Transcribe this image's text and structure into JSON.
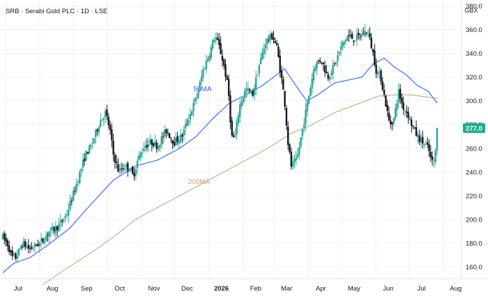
{
  "header": {
    "title": "SRB · Serabi Gold PLC · 1D · LSE",
    "currency": "GBX"
  },
  "colors": {
    "up": "#26a69a",
    "down": "#131722",
    "ma50": "#2962ff",
    "ma200": "#c8a97a",
    "price_badge": "#22ab94",
    "grid": "#eef0f3",
    "text": "#131722"
  },
  "chart_data": {
    "type": "candlestick",
    "title": "SRB · Serabi Gold PLC · 1D · LSE",
    "ylabel": "GBX",
    "ylim": [
      150,
      385
    ],
    "y_ticks": [
      "380.0",
      "360.0",
      "340.0",
      "320.0",
      "300.0",
      "280.0",
      "260.0",
      "240.0",
      "220.0",
      "200.0",
      "180.0",
      "160.0"
    ],
    "y_tick_values": [
      380,
      360,
      340,
      320,
      300,
      280,
      260,
      240,
      220,
      200,
      180,
      160
    ],
    "x_labels": [
      {
        "label": "Jul",
        "day": 5
      },
      {
        "label": "Aug",
        "day": 36
      },
      {
        "label": "Sep",
        "day": 67
      },
      {
        "label": "Oct",
        "day": 97
      },
      {
        "label": "Nov",
        "day": 128
      },
      {
        "label": "Dec",
        "day": 158
      },
      {
        "label": "2026",
        "day": 189
      },
      {
        "label": "Feb",
        "day": 220
      },
      {
        "label": "Mar",
        "day": 248
      },
      {
        "label": "Apr",
        "day": 279
      },
      {
        "label": "May",
        "day": 309
      },
      {
        "label": "Jun",
        "day": 340
      },
      {
        "label": "Jul",
        "day": 370
      },
      {
        "label": "Aug",
        "day": 401
      }
    ],
    "x_range_days": [
      0,
      410
    ],
    "last_price": "277.0",
    "last_price_value": 277,
    "price_anchors": [
      [
        0,
        185
      ],
      [
        5,
        178
      ],
      [
        8,
        168
      ],
      [
        12,
        168
      ],
      [
        18,
        180
      ],
      [
        24,
        175
      ],
      [
        30,
        178
      ],
      [
        36,
        182
      ],
      [
        42,
        190
      ],
      [
        47,
        192
      ],
      [
        52,
        196
      ],
      [
        58,
        205
      ],
      [
        64,
        222
      ],
      [
        70,
        240
      ],
      [
        75,
        255
      ],
      [
        80,
        262
      ],
      [
        88,
        283
      ],
      [
        93,
        290
      ],
      [
        97,
        275
      ],
      [
        100,
        255
      ],
      [
        105,
        240
      ],
      [
        110,
        245
      ],
      [
        115,
        243
      ],
      [
        118,
        236
      ],
      [
        122,
        250
      ],
      [
        128,
        262
      ],
      [
        135,
        265
      ],
      [
        140,
        262
      ],
      [
        148,
        275
      ],
      [
        155,
        265
      ],
      [
        162,
        270
      ],
      [
        170,
        290
      ],
      [
        176,
        305
      ],
      [
        181,
        325
      ],
      [
        187,
        340
      ],
      [
        192,
        355
      ],
      [
        196,
        345
      ],
      [
        200,
        330
      ],
      [
        204,
        310
      ],
      [
        207,
        270
      ],
      [
        210,
        268
      ],
      [
        214,
        295
      ],
      [
        220,
        310
      ],
      [
        226,
        305
      ],
      [
        232,
        330
      ],
      [
        238,
        350
      ],
      [
        244,
        355
      ],
      [
        248,
        345
      ],
      [
        252,
        320
      ],
      [
        255,
        300
      ],
      [
        258,
        265
      ],
      [
        261,
        245
      ],
      [
        266,
        250
      ],
      [
        270,
        270
      ],
      [
        276,
        300
      ],
      [
        282,
        330
      ],
      [
        288,
        335
      ],
      [
        294,
        320
      ],
      [
        300,
        330
      ],
      [
        306,
        345
      ],
      [
        312,
        355
      ],
      [
        318,
        352
      ],
      [
        324,
        355
      ],
      [
        330,
        360
      ],
      [
        335,
        340
      ],
      [
        338,
        325
      ],
      [
        342,
        320
      ],
      [
        346,
        300
      ],
      [
        350,
        280
      ],
      [
        354,
        285
      ],
      [
        358,
        308
      ],
      [
        362,
        295
      ],
      [
        366,
        290
      ],
      [
        370,
        280
      ],
      [
        375,
        270
      ],
      [
        380,
        265
      ],
      [
        385,
        260
      ],
      [
        388,
        248
      ],
      [
        391,
        250
      ],
      [
        393,
        277
      ]
    ],
    "ma50_anchors": [
      [
        0,
        155
      ],
      [
        10,
        163
      ],
      [
        25,
        168
      ],
      [
        40,
        178
      ],
      [
        60,
        192
      ],
      [
        80,
        213
      ],
      [
        100,
        233
      ],
      [
        120,
        245
      ],
      [
        140,
        250
      ],
      [
        160,
        260
      ],
      [
        175,
        270
      ],
      [
        190,
        285
      ],
      [
        205,
        298
      ],
      [
        220,
        305
      ],
      [
        235,
        313
      ],
      [
        245,
        320
      ],
      [
        255,
        327
      ],
      [
        265,
        313
      ],
      [
        275,
        300
      ],
      [
        285,
        305
      ],
      [
        300,
        315
      ],
      [
        315,
        318
      ],
      [
        325,
        320
      ],
      [
        335,
        331
      ],
      [
        345,
        336
      ],
      [
        355,
        328
      ],
      [
        365,
        322
      ],
      [
        375,
        313
      ],
      [
        385,
        308
      ],
      [
        393,
        298
      ]
    ],
    "ma200_anchors": [
      [
        36,
        145
      ],
      [
        60,
        160
      ],
      [
        80,
        172
      ],
      [
        100,
        185
      ],
      [
        120,
        200
      ],
      [
        140,
        210
      ],
      [
        160,
        220
      ],
      [
        180,
        230
      ],
      [
        200,
        240
      ],
      [
        220,
        250
      ],
      [
        240,
        260
      ],
      [
        260,
        272
      ],
      [
        280,
        280
      ],
      [
        300,
        290
      ],
      [
        320,
        297
      ],
      [
        340,
        304
      ],
      [
        355,
        305
      ],
      [
        370,
        305
      ],
      [
        385,
        303
      ],
      [
        393,
        302
      ]
    ],
    "labels": {
      "ma50": "50MA",
      "ma200": "200MA"
    },
    "ma50_label_at": {
      "day": 175,
      "price": 308
    },
    "ma200_label_at": {
      "day": 170,
      "price": 230
    },
    "grid": true,
    "legend_position": "top-left"
  }
}
